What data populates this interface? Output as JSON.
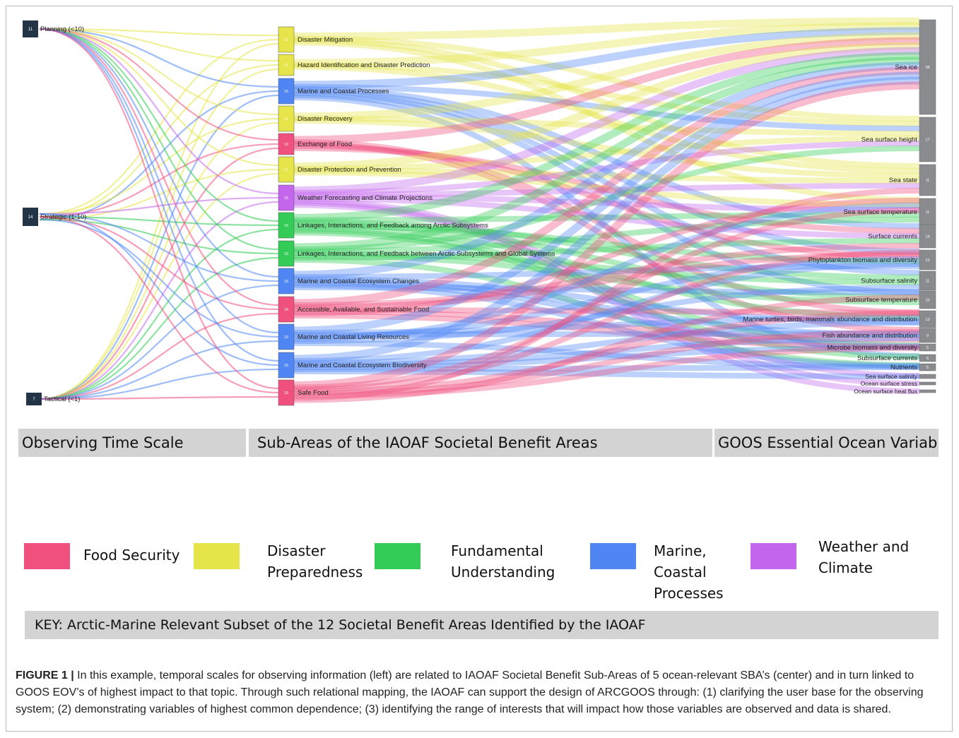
{
  "time_scales": [
    {
      "label": "Planning (<10)",
      "count": "11"
    },
    {
      "label": "Strategic (1-10)",
      "count": "14"
    },
    {
      "label": "Tactical (<1)",
      "count": "7"
    }
  ],
  "sub_areas": [
    {
      "label": "Disaster Mitigation",
      "count": "11",
      "category": "disaster"
    },
    {
      "label": "Hazard Identification and Disaster Prediction",
      "count": "11",
      "category": "disaster"
    },
    {
      "label": "Marine and Coastal Processes",
      "count": "15",
      "category": "marine"
    },
    {
      "label": "Disaster Recovery",
      "count": "11",
      "category": "disaster"
    },
    {
      "label": "Exchange of Food",
      "count": "12",
      "category": "food"
    },
    {
      "label": "Disaster Protection and Prevention",
      "count": "11",
      "category": "disaster"
    },
    {
      "label": "Weather Forecasting and Climate Projections",
      "count": "15",
      "category": "weather"
    },
    {
      "label": "Linkages, Interactions, and Feedback among Arctic Subsystems",
      "count": "15",
      "category": "fundamental"
    },
    {
      "label": "Linkages, Interactions, and Feedback between Arctic Subsystems and Global Systems",
      "count": "15",
      "category": "fundamental"
    },
    {
      "label": "Marine and Coastal Ecosystem Changes",
      "count": "15",
      "category": "marine"
    },
    {
      "label": "Accessible, Available, and Sustainable Food",
      "count": "15",
      "category": "food"
    },
    {
      "label": "Marine and Coastal Living Resources",
      "count": "15",
      "category": "marine"
    },
    {
      "label": "Marine and Coastal Ecosystem Biodiversity",
      "count": "15",
      "category": "marine"
    },
    {
      "label": "Safe Food",
      "count": "15",
      "category": "food"
    }
  ],
  "eovs": [
    {
      "label": "Sea ice",
      "count": "38"
    },
    {
      "label": "Sea surface height",
      "count": "17"
    },
    {
      "label": "Sea state",
      "count": "11"
    },
    {
      "label": "Sea surface temperature",
      "count": "11"
    },
    {
      "label": "Surface currents",
      "count": "14"
    },
    {
      "label": "Phytoplankton biomass and diversity",
      "count": "12"
    },
    {
      "label": "Subsurface salinity",
      "count": "11"
    },
    {
      "label": "Subsurface temperature",
      "count": "10"
    },
    {
      "label": "Marine turtles, birds, mammals abundance and distribution",
      "count": "13"
    },
    {
      "label": "Fish abundance and distribution",
      "count": "9"
    },
    {
      "label": "Microbe biomass and diversity",
      "count": "5"
    },
    {
      "label": "Subsurface currents",
      "count": "5"
    },
    {
      "label": "Nutrients",
      "count": "5"
    },
    {
      "label": "Sea surface salinity",
      "count": "3"
    },
    {
      "label": "Ocean surface stress",
      "count": "2"
    },
    {
      "label": "Ocean surface heat flux",
      "count": "2"
    }
  ],
  "headers": {
    "time": "Observing Time Scale",
    "sub": "Sub-Areas of the IAOAF Societal Benefit Areas",
    "eov": "GOOS Essential Ocean Variables"
  },
  "categories": {
    "food": {
      "label": "Food Security",
      "color": "#f0507e"
    },
    "disaster": {
      "label": "Disaster\nPreparedness",
      "color": "#e5e54a"
    },
    "fundamental": {
      "label": "Fundamental\nUnderstanding",
      "color": "#32cc56"
    },
    "marine": {
      "label": "Marine,\nCoastal\nProcesses",
      "color": "#4f86f4"
    },
    "weather": {
      "label": "Weather and\nClimate",
      "color": "#c366ed"
    }
  },
  "key_title": "KEY: Arctic-Marine Relevant Subset of the 12 Societal Benefit Areas Identified by the IAOAF",
  "caption": {
    "label": "FIGURE 1 |",
    "text": "In this example, temporal scales for observing information (left) are related to IAOAF Societal Benefit Sub-Areas of 5 ocean-relevant SBA’s (center) and in turn linked to GOOS EOV’s of highest impact to that topic. Through such relational mapping, the IAOAF can support the design of ARCGOOS through: (1) clarifying the user base for the observing system; (2) demonstrating variables of highest common dependence; (3) identifying the range of interests that will impact how those variables are observed and data is shared."
  }
}
